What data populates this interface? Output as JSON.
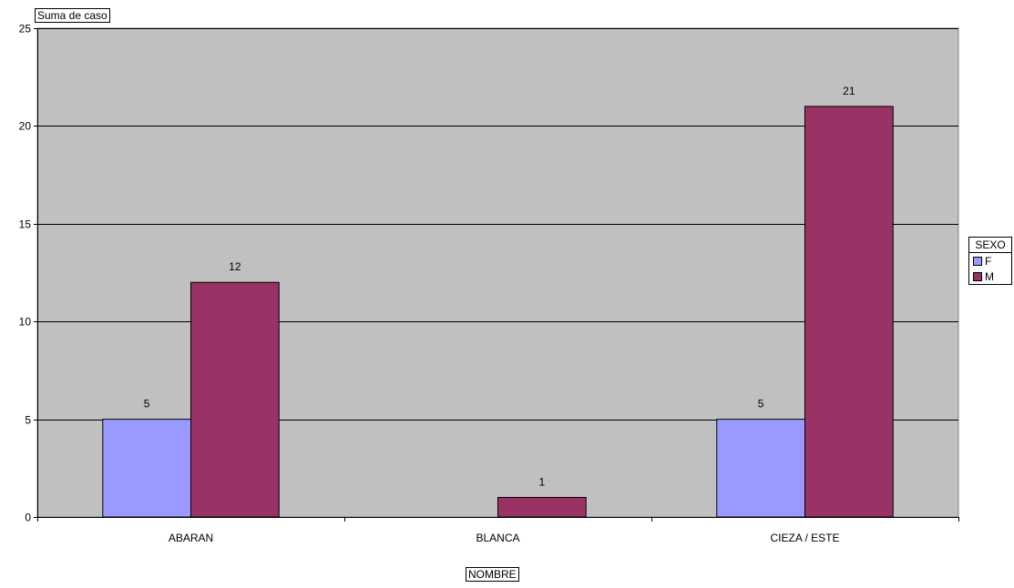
{
  "chart_data": {
    "type": "bar",
    "title": "",
    "field_button_value": "Suma de caso",
    "field_button_category": "NOMBRE",
    "categories": [
      "ABARAN",
      "BLANCA",
      "CIEZA / ESTE"
    ],
    "series": [
      {
        "name": "F",
        "values": [
          5,
          null,
          5
        ],
        "color": "#9999ff"
      },
      {
        "name": "M",
        "values": [
          12,
          1,
          21
        ],
        "color": "#993366"
      }
    ],
    "legend": {
      "title": "SEXO",
      "placement": "right"
    },
    "ylim": [
      0,
      25
    ],
    "yticks": [
      0,
      5,
      10,
      15,
      20,
      25
    ],
    "grid": true,
    "plot_background": "#c0c0c0"
  }
}
